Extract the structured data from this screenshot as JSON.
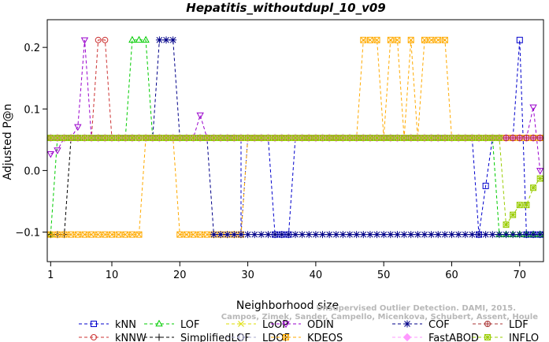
{
  "chart_data": {
    "type": "line",
    "title": "Hepatitis_withoutdupl_10_v09",
    "xlabel": "Neighborhood size",
    "ylabel": "Adjusted P@n",
    "xlim": [
      0.5,
      73.5
    ],
    "ylim": [
      -0.148,
      0.245
    ],
    "x_ticks": [
      1,
      10,
      20,
      30,
      40,
      50,
      60,
      70
    ],
    "y_ticks": [
      -0.1,
      0.0,
      0.1,
      0.2
    ],
    "y_tick_labels": [
      "−0.1",
      "0.0",
      "0.1",
      "0.2"
    ],
    "grid": false,
    "legend_position": "bottom",
    "watermark": [
      "Campos, Zimek, Sander, Campello, Micenkova, Schubert, Assent, Houle",
      "Unsupervised Outlier Detection. DAMI, 2015."
    ],
    "series": [
      {
        "name": "kNN",
        "color": "#0000cc",
        "marker": "square",
        "segments": [
          [
            1,
            29,
            0.053
          ],
          [
            29,
            29,
            -0.104
          ],
          [
            30,
            33,
            0.053
          ],
          [
            34,
            36,
            -0.104
          ],
          [
            37,
            63,
            0.053
          ],
          [
            64,
            64,
            -0.104
          ],
          [
            65,
            65,
            -0.025
          ],
          [
            66,
            69,
            0.053
          ],
          [
            70,
            70,
            0.212
          ],
          [
            71,
            73,
            -0.104
          ]
        ]
      },
      {
        "name": "kNNW",
        "color": "#cc3333",
        "marker": "circle",
        "segments": [
          [
            1,
            7,
            0.053
          ],
          [
            8,
            9,
            0.212
          ],
          [
            10,
            73,
            0.053
          ]
        ]
      },
      {
        "name": "LOF",
        "color": "#00cc00",
        "marker": "triangle-up",
        "segments": [
          [
            1,
            1,
            -0.104
          ],
          [
            2,
            12,
            0.053
          ],
          [
            13,
            15,
            0.212
          ],
          [
            16,
            66,
            0.053
          ],
          [
            67,
            73,
            -0.104
          ]
        ]
      },
      {
        "name": "SimplifiedLOF",
        "color": "#000000",
        "marker": "plus",
        "segments": [
          [
            1,
            3,
            -0.104
          ],
          [
            4,
            73,
            0.053
          ]
        ]
      },
      {
        "name": "LoOP",
        "color": "#dddd00",
        "marker": "x",
        "segments": [
          [
            1,
            73,
            0.053
          ]
        ]
      },
      {
        "name": "LDOF",
        "color": "#aaaacc",
        "marker": "diamond",
        "segments": [
          [
            1,
            73,
            0.053
          ]
        ]
      },
      {
        "name": "ODIN",
        "color": "#9900cc",
        "marker": "triangle-down",
        "segments": [
          [
            1,
            1,
            0.027
          ],
          [
            2,
            2,
            0.033
          ],
          [
            3,
            4,
            0.053
          ],
          [
            5,
            5,
            0.071
          ],
          [
            6,
            6,
            0.212
          ],
          [
            7,
            22,
            0.053
          ],
          [
            23,
            23,
            0.09
          ],
          [
            24,
            71,
            0.053
          ],
          [
            72,
            72,
            0.103
          ],
          [
            73,
            73,
            0.0
          ]
        ]
      },
      {
        "name": "KDEOS",
        "color": "#ffaa00",
        "marker": "square-x",
        "segments": [
          [
            1,
            14,
            -0.104
          ],
          [
            15,
            19,
            0.053
          ],
          [
            20,
            29,
            -0.104
          ],
          [
            30,
            46,
            0.053
          ],
          [
            47,
            49,
            0.212
          ],
          [
            50,
            50,
            0.053
          ],
          [
            51,
            52,
            0.212
          ],
          [
            53,
            53,
            0.053
          ],
          [
            54,
            54,
            0.212
          ],
          [
            55,
            55,
            0.053
          ],
          [
            56,
            59,
            0.212
          ],
          [
            60,
            73,
            0.053
          ]
        ]
      },
      {
        "name": "COF",
        "color": "#000088",
        "marker": "asterisk",
        "segments": [
          [
            1,
            16,
            0.053
          ],
          [
            17,
            19,
            0.212
          ],
          [
            20,
            24,
            0.053
          ],
          [
            25,
            73,
            -0.104
          ]
        ]
      },
      {
        "name": "FastABOD",
        "color": "#ff99ff",
        "marker": "diamond-filled",
        "segments": [
          [
            1,
            73,
            0.053
          ]
        ]
      },
      {
        "name": "LDF",
        "color": "#aa3333",
        "marker": "circle-plus",
        "segments": [
          [
            1,
            73,
            0.053
          ]
        ]
      },
      {
        "name": "INFLO",
        "color": "#99cc00",
        "marker": "square-star",
        "segments": [
          [
            1,
            67,
            0.053
          ],
          [
            68,
            68,
            -0.088
          ],
          [
            69,
            69,
            -0.072
          ],
          [
            70,
            71,
            -0.056
          ],
          [
            72,
            72,
            -0.028
          ],
          [
            73,
            73,
            -0.013
          ]
        ]
      }
    ]
  }
}
